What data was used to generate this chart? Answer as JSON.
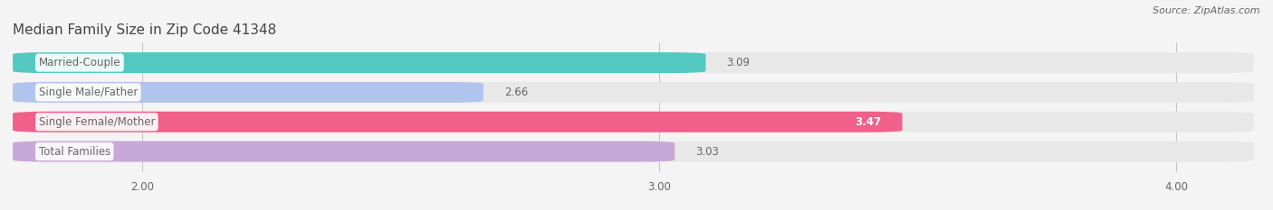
{
  "title": "Median Family Size in Zip Code 41348",
  "source": "Source: ZipAtlas.com",
  "categories": [
    "Married-Couple",
    "Single Male/Father",
    "Single Female/Mother",
    "Total Families"
  ],
  "values": [
    3.09,
    2.66,
    3.47,
    3.03
  ],
  "bar_colors": [
    "#53C8C0",
    "#B0C4EE",
    "#F0608A",
    "#C8A8D8"
  ],
  "bar_bg_color": "#E8E8E8",
  "xlim_left": 1.75,
  "xlim_right": 4.15,
  "xticks": [
    2.0,
    3.0,
    4.0
  ],
  "xtick_labels": [
    "2.00",
    "3.00",
    "4.00"
  ],
  "title_fontsize": 11,
  "label_fontsize": 8.5,
  "value_fontsize": 8.5,
  "source_fontsize": 8,
  "background_color": "#F4F4F4",
  "text_color": "#666666",
  "title_color": "#444444",
  "value_inside_color": "#FFFFFF",
  "value_outside_color": "#666666"
}
